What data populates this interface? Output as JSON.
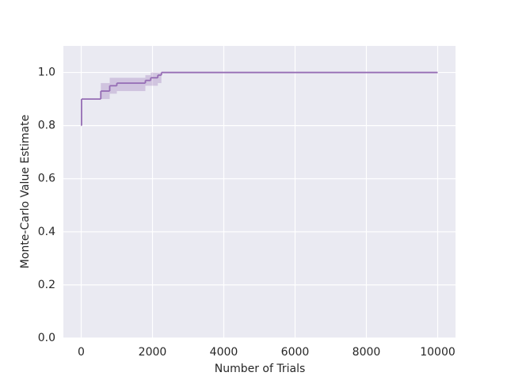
{
  "chart_data": {
    "type": "line",
    "drawstyle": "steps-post",
    "xlabel": "Number of Trials",
    "ylabel": "Monte-Carlo Value Estimate",
    "x": [
      0,
      10,
      550,
      800,
      1000,
      1800,
      1950,
      2150,
      2250,
      10000
    ],
    "series": [
      {
        "color": "#956cb4",
        "values": [
          0.8,
          0.9,
          0.93,
          0.95,
          0.96,
          0.97,
          0.98,
          0.99,
          1.0,
          1.0
        ],
        "lower": [
          0.8,
          0.9,
          0.9,
          0.92,
          0.93,
          0.95,
          0.95,
          0.96,
          1.0,
          1.0
        ],
        "upper": [
          0.8,
          0.9,
          0.96,
          0.98,
          0.98,
          0.99,
          1.0,
          1.0,
          1.0,
          1.0
        ]
      }
    ],
    "xlim": [
      -500,
      10500
    ],
    "ylim": [
      0,
      1.1
    ],
    "xticks": [
      0,
      2000,
      4000,
      6000,
      8000,
      10000
    ],
    "yticks": [
      {
        "value": 0,
        "label": "0.0"
      },
      0.2,
      0.4,
      0.6,
      0.8,
      {
        "value": 1,
        "label": "1.0"
      }
    ],
    "grid": true
  }
}
